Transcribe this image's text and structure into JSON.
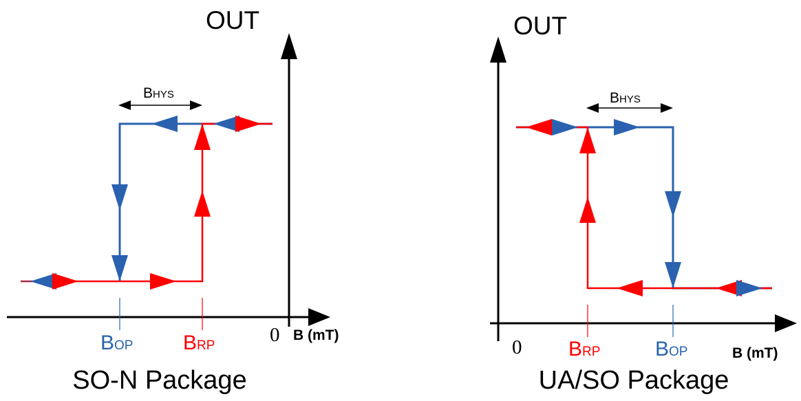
{
  "colors": {
    "blue": "#2a62b0",
    "red": "#ff0000",
    "axis": "#000000"
  },
  "left": {
    "y_axis_label": "OUT",
    "x_axis_label": "B (mT)",
    "origin_label": "0",
    "hys_label": {
      "main": "B",
      "sub": "HYS"
    },
    "bop_label": {
      "main": "B",
      "sub": "OP"
    },
    "brp_label": {
      "main": "B",
      "sub": "RP"
    },
    "caption": "SO-N Package"
  },
  "right": {
    "y_axis_label": "OUT",
    "x_axis_label": "B (mT)",
    "origin_label": "0",
    "hys_label": {
      "main": "B",
      "sub": "HYS"
    },
    "bop_label": {
      "main": "B",
      "sub": "OP"
    },
    "brp_label": {
      "main": "B",
      "sub": "RP"
    },
    "caption": "UA/SO Package"
  }
}
